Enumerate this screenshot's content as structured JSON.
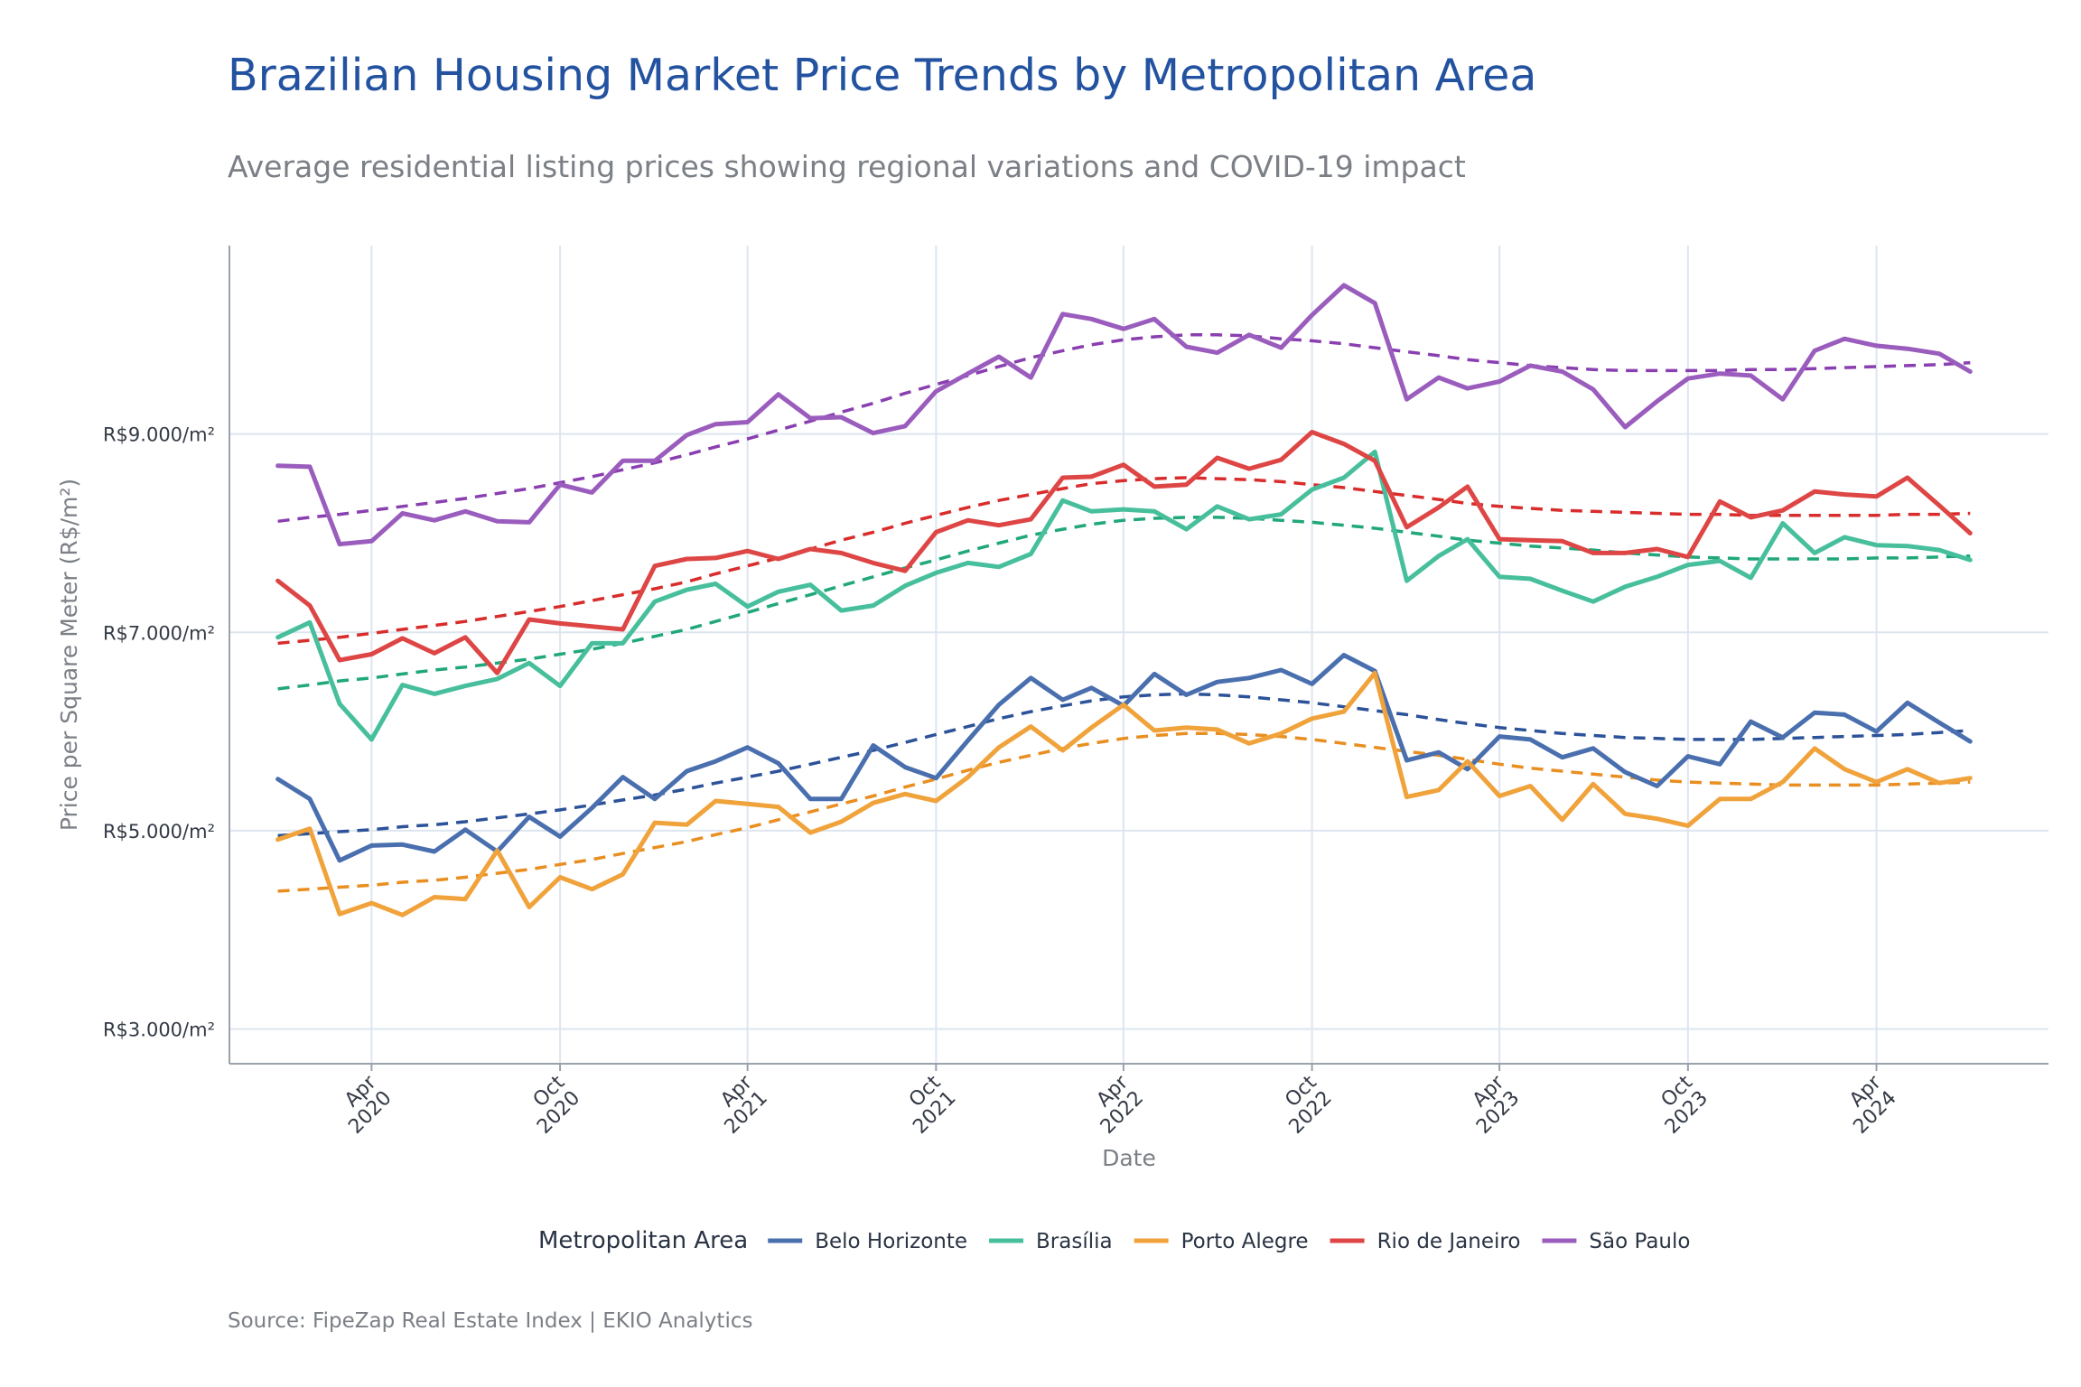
{
  "chart_data": {
    "type": "line",
    "title": "Brazilian Housing Market Price Trends by Metropolitan Area",
    "subtitle": "Average residential listing prices showing regional variations and COVID-19 impact",
    "xlabel": "Date",
    "ylabel": "Price per Square Meter (R$/m²)",
    "caption": "Source: FipeZap Real Estate Index | EKIO Analytics",
    "legend_title": "Metropolitan Area",
    "legend_position": "bottom",
    "grid": true,
    "x_range": [
      "2019-11-15",
      "2024-09-15"
    ],
    "ylim": [
      2650,
      10900
    ],
    "y_ticks": [
      {
        "value": 3000,
        "label": "R$3.000/m²"
      },
      {
        "value": 5000,
        "label": "R$5.000/m²"
      },
      {
        "value": 7000,
        "label": "R$7.000/m²"
      },
      {
        "value": 9000,
        "label": "R$9.000/m²"
      }
    ],
    "x_ticks": [
      {
        "date": "2020-04-01",
        "line1": "Apr",
        "line2": "2020"
      },
      {
        "date": "2020-10-01",
        "line1": "Oct",
        "line2": "2020"
      },
      {
        "date": "2021-04-01",
        "line1": "Apr",
        "line2": "2021"
      },
      {
        "date": "2021-10-01",
        "line1": "Oct",
        "line2": "2021"
      },
      {
        "date": "2022-04-01",
        "line1": "Apr",
        "line2": "2022"
      },
      {
        "date": "2022-10-01",
        "line1": "Oct",
        "line2": "2022"
      },
      {
        "date": "2023-04-01",
        "line1": "Apr",
        "line2": "2023"
      },
      {
        "date": "2023-10-01",
        "line1": "Oct",
        "line2": "2023"
      },
      {
        "date": "2024-04-01",
        "line1": "Apr",
        "line2": "2024"
      }
    ],
    "x_dates": [
      "2020-01-01",
      "2020-02-01",
      "2020-03-01",
      "2020-04-01",
      "2020-05-01",
      "2020-06-01",
      "2020-07-01",
      "2020-08-01",
      "2020-09-01",
      "2020-10-01",
      "2020-11-01",
      "2020-12-01",
      "2021-01-01",
      "2021-02-01",
      "2021-03-01",
      "2021-04-01",
      "2021-05-01",
      "2021-06-01",
      "2021-07-01",
      "2021-08-01",
      "2021-09-01",
      "2021-10-01",
      "2021-11-01",
      "2021-12-01",
      "2022-01-01",
      "2022-02-01",
      "2022-03-01",
      "2022-04-01",
      "2022-05-01",
      "2022-06-01",
      "2022-07-01",
      "2022-08-01",
      "2022-09-01",
      "2022-10-01",
      "2022-11-01",
      "2022-12-01",
      "2023-01-01",
      "2023-02-01",
      "2023-03-01",
      "2023-04-01",
      "2023-05-01",
      "2023-06-01",
      "2023-07-01",
      "2023-08-01",
      "2023-09-01",
      "2023-10-01",
      "2023-11-01",
      "2023-12-01",
      "2024-01-01",
      "2024-02-01",
      "2024-03-01",
      "2024-04-01",
      "2024-05-01",
      "2024-06-01",
      "2024-07-01"
    ],
    "series": [
      {
        "name": "Belo Horizonte",
        "color": "#4a6fae",
        "trend_color": "#2c5299",
        "values": [
          5520,
          5320,
          4700,
          4850,
          4860,
          4790,
          5010,
          4790,
          5140,
          4940,
          5230,
          5540,
          5320,
          5600,
          5700,
          5840,
          5680,
          5320,
          5320,
          5860,
          5640,
          5530,
          5910,
          6270,
          6540,
          6320,
          6440,
          6260,
          6580,
          6370,
          6500,
          6540,
          6620,
          6480,
          6770,
          6610,
          5710,
          5790,
          5620,
          5950,
          5920,
          5740,
          5830,
          5590,
          5450,
          5750,
          5670,
          6100,
          5940,
          6190,
          6170,
          6000,
          6290,
          6090,
          5900
        ],
        "trend": [
          4950,
          4970,
          4990,
          5010,
          5040,
          5060,
          5090,
          5130,
          5170,
          5210,
          5260,
          5310,
          5360,
          5420,
          5480,
          5540,
          5600,
          5670,
          5740,
          5810,
          5890,
          5970,
          6050,
          6130,
          6200,
          6260,
          6310,
          6350,
          6370,
          6380,
          6370,
          6350,
          6320,
          6290,
          6250,
          6210,
          6170,
          6120,
          6080,
          6040,
          6010,
          5980,
          5960,
          5940,
          5930,
          5920,
          5920,
          5920,
          5930,
          5940,
          5950,
          5960,
          5970,
          5990,
          6010
        ]
      },
      {
        "name": "Brasília",
        "color": "#47bf9c",
        "trend_color": "#20a77a",
        "values": [
          6950,
          7100,
          6280,
          5920,
          6470,
          6380,
          6460,
          6530,
          6690,
          6460,
          6890,
          6890,
          7310,
          7430,
          7490,
          7260,
          7410,
          7480,
          7220,
          7270,
          7470,
          7600,
          7700,
          7660,
          7790,
          8330,
          8220,
          8240,
          8220,
          8040,
          8270,
          8140,
          8190,
          8440,
          8560,
          8820,
          7520,
          7770,
          7940,
          7560,
          7540,
          7420,
          7310,
          7460,
          7560,
          7680,
          7720,
          7550,
          8100,
          7800,
          7960,
          7880,
          7870,
          7830,
          7730
        ],
        "trend": [
          6430,
          6470,
          6510,
          6540,
          6580,
          6620,
          6650,
          6690,
          6730,
          6780,
          6830,
          6890,
          6960,
          7030,
          7110,
          7200,
          7290,
          7380,
          7470,
          7560,
          7650,
          7730,
          7820,
          7900,
          7980,
          8040,
          8090,
          8130,
          8150,
          8160,
          8160,
          8150,
          8130,
          8110,
          8080,
          8050,
          8010,
          7970,
          7930,
          7900,
          7870,
          7850,
          7830,
          7800,
          7780,
          7760,
          7750,
          7740,
          7740,
          7740,
          7740,
          7750,
          7750,
          7760,
          7770
        ]
      },
      {
        "name": "Porto Alegre",
        "color": "#f0a23b",
        "trend_color": "#e98e20",
        "values": [
          4910,
          5020,
          4160,
          4270,
          4150,
          4330,
          4310,
          4800,
          4230,
          4530,
          4410,
          4560,
          5080,
          5060,
          5300,
          5270,
          5240,
          4980,
          5090,
          5280,
          5370,
          5300,
          5540,
          5840,
          6050,
          5810,
          6040,
          6270,
          6010,
          6040,
          6020,
          5880,
          5980,
          6130,
          6200,
          6590,
          5340,
          5410,
          5700,
          5350,
          5450,
          5110,
          5470,
          5170,
          5120,
          5050,
          5320,
          5320,
          5490,
          5830,
          5620,
          5490,
          5620,
          5480,
          5530
        ],
        "trend": [
          4390,
          4410,
          4430,
          4450,
          4480,
          4500,
          4530,
          4570,
          4610,
          4660,
          4710,
          4770,
          4830,
          4890,
          4960,
          5030,
          5110,
          5190,
          5270,
          5350,
          5440,
          5520,
          5610,
          5690,
          5760,
          5830,
          5880,
          5930,
          5960,
          5980,
          5980,
          5970,
          5950,
          5920,
          5880,
          5840,
          5800,
          5760,
          5720,
          5670,
          5630,
          5600,
          5570,
          5540,
          5510,
          5490,
          5480,
          5470,
          5460,
          5460,
          5460,
          5460,
          5470,
          5480,
          5490
        ]
      },
      {
        "name": "Rio de Janeiro",
        "color": "#dd4645",
        "trend_color": "#d92c2c",
        "values": [
          7520,
          7270,
          6720,
          6780,
          6940,
          6790,
          6950,
          6590,
          7130,
          7090,
          7060,
          7030,
          7670,
          7740,
          7750,
          7820,
          7740,
          7840,
          7800,
          7700,
          7620,
          8010,
          8130,
          8080,
          8140,
          8560,
          8570,
          8690,
          8470,
          8490,
          8760,
          8650,
          8740,
          9020,
          8900,
          8730,
          8060,
          8260,
          8470,
          7940,
          7930,
          7920,
          7800,
          7800,
          7840,
          7760,
          8320,
          8160,
          8230,
          8420,
          8390,
          8370,
          8560,
          8280,
          8000
        ],
        "trend": [
          6890,
          6920,
          6950,
          6990,
          7030,
          7070,
          7110,
          7160,
          7210,
          7260,
          7320,
          7380,
          7440,
          7510,
          7590,
          7670,
          7750,
          7840,
          7930,
          8010,
          8100,
          8180,
          8260,
          8330,
          8390,
          8450,
          8500,
          8530,
          8550,
          8560,
          8550,
          8540,
          8520,
          8490,
          8460,
          8420,
          8380,
          8340,
          8300,
          8270,
          8250,
          8230,
          8220,
          8210,
          8200,
          8190,
          8190,
          8180,
          8180,
          8180,
          8180,
          8180,
          8190,
          8190,
          8200
        ]
      },
      {
        "name": "São Paulo",
        "color": "#9a5dbd",
        "trend_color": "#8a3fb0",
        "values": [
          8680,
          8670,
          7890,
          7920,
          8200,
          8130,
          8220,
          8120,
          8110,
          8490,
          8410,
          8730,
          8730,
          8990,
          9100,
          9120,
          9400,
          9160,
          9170,
          9010,
          9080,
          9430,
          9610,
          9780,
          9570,
          10210,
          10160,
          10060,
          10160,
          9880,
          9820,
          10000,
          9870,
          10200,
          10500,
          10320,
          9350,
          9570,
          9460,
          9530,
          9690,
          9630,
          9450,
          9070,
          9330,
          9560,
          9610,
          9590,
          9350,
          9840,
          9960,
          9890,
          9860,
          9810,
          9630
        ],
        "trend": [
          8120,
          8160,
          8190,
          8230,
          8270,
          8310,
          8350,
          8400,
          8450,
          8510,
          8570,
          8640,
          8710,
          8790,
          8870,
          8950,
          9040,
          9130,
          9220,
          9310,
          9410,
          9500,
          9590,
          9680,
          9770,
          9840,
          9900,
          9950,
          9980,
          10000,
          10000,
          9990,
          9960,
          9940,
          9910,
          9870,
          9830,
          9790,
          9750,
          9720,
          9690,
          9670,
          9650,
          9640,
          9640,
          9640,
          9640,
          9650,
          9650,
          9660,
          9670,
          9680,
          9690,
          9700,
          9720
        ]
      }
    ]
  }
}
